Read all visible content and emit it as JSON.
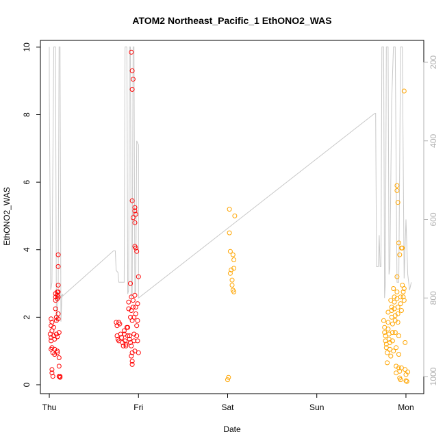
{
  "chart_data": {
    "type": "scatter",
    "title": "ATOM2 Northeast_Pacific_1 EthONO2_WAS",
    "xlabel": "Date",
    "ylabel": "EthONO2_WAS",
    "x_ticks": [
      "Thu",
      "Fri",
      "Sat",
      "Sun",
      "Mon"
    ],
    "x_range_days": [
      -0.1,
      4.2
    ],
    "y_left": {
      "range": [
        0,
        10.2
      ],
      "ticks": [
        "0",
        "2",
        "4",
        "6",
        "8",
        "10"
      ]
    },
    "y_right": {
      "range_reversed": [
        161,
        1082
      ],
      "ticks": [
        "200",
        "400",
        "600",
        "800",
        "1000"
      ],
      "color": "#b0b0b0"
    },
    "grid": false,
    "colors": {
      "series_1": "#ff0000",
      "series_2": "#ffa500",
      "altitude_line": "#c8c8c8"
    },
    "series": [
      {
        "color": "#ff0000",
        "points": [
          [
            0.02,
            1.95
          ],
          [
            0.03,
            1.85
          ],
          [
            0.02,
            1.75
          ],
          [
            0.03,
            1.6
          ],
          [
            0.01,
            1.5
          ],
          [
            0.02,
            1.4
          ],
          [
            0.02,
            1.3
          ],
          [
            0.03,
            1.1
          ],
          [
            0.02,
            1.05
          ],
          [
            0.04,
            0.95
          ],
          [
            0.03,
            0.45
          ],
          [
            0.03,
            0.35
          ],
          [
            0.04,
            0.25
          ],
          [
            0.05,
            1.7
          ],
          [
            0.05,
            1.45
          ],
          [
            0.06,
            1.35
          ],
          [
            0.06,
            1.05
          ],
          [
            0.06,
            0.9
          ],
          [
            0.07,
            2.7
          ],
          [
            0.07,
            2.6
          ],
          [
            0.07,
            2.5
          ],
          [
            0.07,
            2.25
          ],
          [
            0.08,
            2.0
          ],
          [
            0.08,
            1.9
          ],
          [
            0.08,
            1.5
          ],
          [
            0.09,
            1.42
          ],
          [
            0.09,
            1.0
          ],
          [
            0.09,
            0.95
          ],
          [
            0.09,
            2.75
          ],
          [
            0.09,
            2.65
          ],
          [
            0.09,
            2.55
          ],
          [
            0.1,
            2.1
          ],
          [
            0.1,
            1.95
          ],
          [
            0.1,
            3.85
          ],
          [
            0.1,
            3.5
          ],
          [
            0.1,
            2.95
          ],
          [
            0.1,
            2.75
          ],
          [
            0.1,
            2.6
          ],
          [
            0.11,
            1.55
          ],
          [
            0.11,
            0.8
          ],
          [
            0.11,
            0.55
          ],
          [
            0.11,
            0.25
          ],
          [
            0.12,
            0.25
          ],
          [
            0.12,
            0.22
          ],
          [
            0.75,
            1.85
          ],
          [
            0.76,
            1.75
          ],
          [
            0.76,
            1.45
          ],
          [
            0.77,
            1.35
          ],
          [
            0.78,
            1.3
          ],
          [
            0.78,
            1.85
          ],
          [
            0.79,
            1.8
          ],
          [
            0.8,
            1.5
          ],
          [
            0.81,
            1.4
          ],
          [
            0.82,
            1.25
          ],
          [
            0.83,
            1.15
          ],
          [
            0.84,
            1.6
          ],
          [
            0.84,
            1.5
          ],
          [
            0.85,
            1.3
          ],
          [
            0.86,
            1.15
          ],
          [
            0.86,
            1.2
          ],
          [
            0.87,
            1.7
          ],
          [
            0.88,
            1.7
          ],
          [
            0.88,
            1.45
          ],
          [
            0.89,
            2.45
          ],
          [
            0.89,
            2.25
          ],
          [
            0.9,
            1.45
          ],
          [
            0.9,
            1.35
          ],
          [
            0.91,
            2.0
          ],
          [
            0.91,
            1.25
          ],
          [
            0.92,
            1.15
          ],
          [
            0.92,
            0.85
          ],
          [
            0.93,
            0.95
          ],
          [
            0.93,
            0.7
          ],
          [
            0.93,
            0.6
          ],
          [
            0.91,
            3.0
          ],
          [
            0.92,
            2.6
          ],
          [
            0.92,
            2.2
          ],
          [
            0.93,
            1.9
          ],
          [
            0.94,
            2.5
          ],
          [
            0.94,
            2.3
          ],
          [
            0.95,
            2.0
          ],
          [
            0.95,
            1.5
          ],
          [
            0.95,
            1.3
          ],
          [
            0.96,
            1.0
          ],
          [
            0.96,
            2.65
          ],
          [
            0.97,
            2.3
          ],
          [
            0.97,
            2.1
          ],
          [
            0.98,
            1.75
          ],
          [
            0.98,
            1.45
          ],
          [
            0.99,
            2.4
          ],
          [
            0.99,
            1.9
          ],
          [
            0.99,
            1.3
          ],
          [
            1.0,
            0.95
          ],
          [
            1.0,
            3.2
          ],
          [
            0.92,
            9.85
          ],
          [
            0.93,
            9.3
          ],
          [
            0.94,
            9.05
          ],
          [
            0.93,
            8.75
          ],
          [
            0.93,
            5.45
          ],
          [
            0.94,
            4.95
          ],
          [
            0.96,
            5.25
          ],
          [
            0.96,
            5.15
          ],
          [
            0.97,
            5.05
          ],
          [
            0.96,
            4.8
          ],
          [
            0.96,
            4.1
          ],
          [
            0.97,
            4.05
          ],
          [
            0.98,
            3.95
          ]
        ]
      },
      {
        "color": "#ffa500",
        "points": [
          [
            2.0,
            0.15
          ],
          [
            2.01,
            0.22
          ],
          [
            2.02,
            5.2
          ],
          [
            2.02,
            4.5
          ],
          [
            2.03,
            3.95
          ],
          [
            2.03,
            3.3
          ],
          [
            2.04,
            3.4
          ],
          [
            2.05,
            3.1
          ],
          [
            2.05,
            2.95
          ],
          [
            2.06,
            2.8
          ],
          [
            2.06,
            3.85
          ],
          [
            2.07,
            3.7
          ],
          [
            2.07,
            3.45
          ],
          [
            2.08,
            5.0
          ],
          [
            2.07,
            2.75
          ],
          [
            3.75,
            1.9
          ],
          [
            3.76,
            1.7
          ],
          [
            3.76,
            1.55
          ],
          [
            3.77,
            1.45
          ],
          [
            3.77,
            1.3
          ],
          [
            3.78,
            1.2
          ],
          [
            3.78,
            1.1
          ],
          [
            3.79,
            0.95
          ],
          [
            3.79,
            0.65
          ],
          [
            3.8,
            2.15
          ],
          [
            3.8,
            1.85
          ],
          [
            3.8,
            1.65
          ],
          [
            3.81,
            1.5
          ],
          [
            3.81,
            1.35
          ],
          [
            3.82,
            1.25
          ],
          [
            3.82,
            1.05
          ],
          [
            3.83,
            0.85
          ],
          [
            3.83,
            2.5
          ],
          [
            3.84,
            2.3
          ],
          [
            3.84,
            2.2
          ],
          [
            3.84,
            2.0
          ],
          [
            3.85,
            1.8
          ],
          [
            3.85,
            1.55
          ],
          [
            3.85,
            1.3
          ],
          [
            3.86,
            1.0
          ],
          [
            3.86,
            2.85
          ],
          [
            3.87,
            2.6
          ],
          [
            3.87,
            2.45
          ],
          [
            3.87,
            2.25
          ],
          [
            3.88,
            2.05
          ],
          [
            3.88,
            1.9
          ],
          [
            3.88,
            1.55
          ],
          [
            3.89,
            1.1
          ],
          [
            3.89,
            0.55
          ],
          [
            3.89,
            0.35
          ],
          [
            3.9,
            3.2
          ],
          [
            3.9,
            2.75
          ],
          [
            3.9,
            2.55
          ],
          [
            3.91,
            2.3
          ],
          [
            3.91,
            2.1
          ],
          [
            3.91,
            1.85
          ],
          [
            3.92,
            1.45
          ],
          [
            3.92,
            0.9
          ],
          [
            3.92,
            0.5
          ],
          [
            3.93,
            0.4
          ],
          [
            3.93,
            0.2
          ],
          [
            3.94,
            0.15
          ],
          [
            3.94,
            2.6
          ],
          [
            3.94,
            2.4
          ],
          [
            3.95,
            2.2
          ],
          [
            3.9,
            5.9
          ],
          [
            3.9,
            5.75
          ],
          [
            3.91,
            5.4
          ],
          [
            3.92,
            4.2
          ],
          [
            3.93,
            3.85
          ],
          [
            3.95,
            4.05
          ],
          [
            3.96,
            4.05
          ],
          [
            3.96,
            2.95
          ],
          [
            3.97,
            2.75
          ],
          [
            3.97,
            2.6
          ],
          [
            3.98,
            2.5
          ],
          [
            3.98,
            2.85
          ],
          [
            3.98,
            8.7
          ],
          [
            3.99,
            0.45
          ],
          [
            4.0,
            0.3
          ],
          [
            4.0,
            0.12
          ],
          [
            4.01,
            0.1
          ],
          [
            4.02,
            0.38
          ],
          [
            3.99,
            1.25
          ],
          [
            3.95,
            0.5
          ]
        ]
      }
    ],
    "altitude_line_pressure": [
      [
        0.0,
        161
      ],
      [
        0.0,
        270
      ],
      [
        0.015,
        780
      ],
      [
        0.02,
        775
      ],
      [
        0.03,
        760
      ],
      [
        0.05,
        161
      ],
      [
        0.07,
        161
      ],
      [
        0.08,
        860
      ],
      [
        0.09,
        850
      ],
      [
        0.1,
        800
      ],
      [
        0.11,
        161
      ],
      [
        0.12,
        161
      ],
      [
        0.13,
        860
      ],
      [
        0.14,
        800
      ],
      [
        0.15,
        790
      ],
      [
        0.1,
        805
      ],
      [
        0.72,
        680
      ],
      [
        0.74,
        680
      ],
      [
        0.75,
        730
      ],
      [
        0.77,
        735
      ],
      [
        0.78,
        760
      ],
      [
        0.84,
        760
      ],
      [
        0.85,
        161
      ],
      [
        0.87,
        161
      ],
      [
        0.88,
        790
      ],
      [
        0.89,
        780
      ],
      [
        0.9,
        161
      ],
      [
        0.91,
        161
      ],
      [
        0.92,
        800
      ],
      [
        0.93,
        790
      ],
      [
        0.94,
        161
      ],
      [
        0.95,
        161
      ],
      [
        0.96,
        790
      ],
      [
        0.97,
        780
      ],
      [
        0.98,
        400
      ],
      [
        1.0,
        410
      ],
      [
        1.0,
        800
      ],
      [
        3.65,
        330
      ],
      [
        3.66,
        330
      ],
      [
        3.67,
        720
      ],
      [
        3.69,
        720
      ],
      [
        3.7,
        640
      ],
      [
        3.71,
        720
      ],
      [
        3.72,
        720
      ],
      [
        3.73,
        161
      ],
      [
        3.75,
        161
      ],
      [
        3.76,
        800
      ],
      [
        3.77,
        760
      ],
      [
        3.78,
        161
      ],
      [
        3.8,
        161
      ],
      [
        3.81,
        740
      ],
      [
        3.82,
        720
      ],
      [
        3.84,
        300
      ],
      [
        3.86,
        161
      ],
      [
        3.88,
        161
      ],
      [
        3.9,
        760
      ],
      [
        3.92,
        760
      ],
      [
        3.94,
        161
      ],
      [
        3.96,
        161
      ],
      [
        3.98,
        750
      ],
      [
        4.0,
        600
      ],
      [
        4.02,
        740
      ],
      [
        4.04,
        780
      ],
      [
        4.06,
        760
      ]
    ]
  }
}
